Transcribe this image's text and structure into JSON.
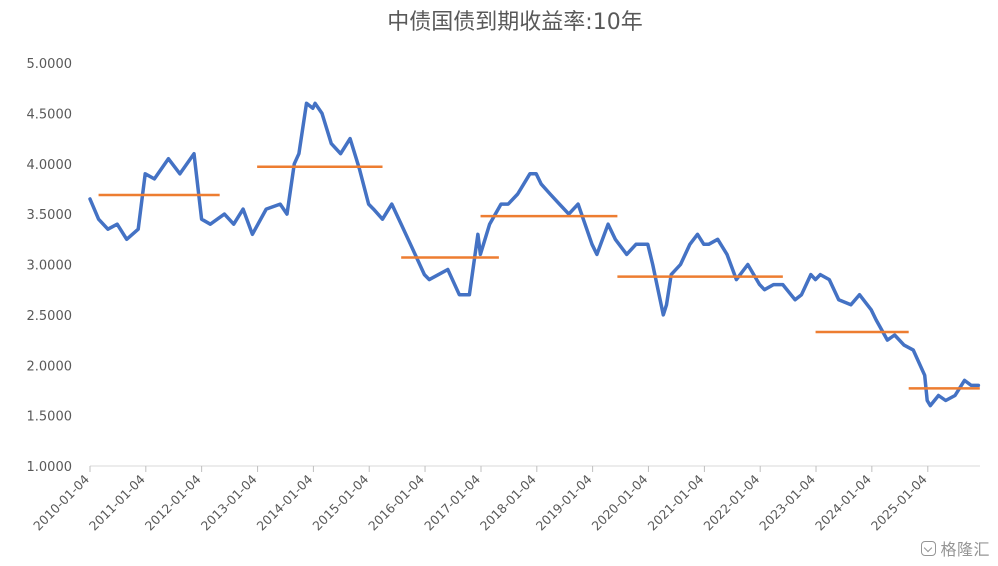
{
  "chart_data": {
    "type": "line",
    "title": "中债国债到期收益率:10年",
    "xlabel": "",
    "ylabel": "",
    "ylim": [
      1.0,
      5.0
    ],
    "y_ticks": [
      "5.0000",
      "4.5000",
      "4.0000",
      "3.5000",
      "3.0000",
      "2.5000",
      "2.0000",
      "1.5000",
      "1.0000"
    ],
    "x_ticks": [
      "2010-01-04",
      "2011-01-04",
      "2012-01-04",
      "2013-01-04",
      "2014-01-04",
      "2015-01-04",
      "2016-01-04",
      "2017-01-04",
      "2018-01-04",
      "2019-01-04",
      "2020-01-04",
      "2021-01-04",
      "2022-01-04",
      "2023-01-04",
      "2024-01-04",
      "2025-01-04"
    ],
    "grid": false,
    "legend": "none",
    "series": [
      {
        "color": "#4472C4",
        "x": [
          "2010-01-04",
          "2010-03-01",
          "2010-05-01",
          "2010-07-01",
          "2010-09-01",
          "2010-11-15",
          "2010-12-31",
          "2011-03-01",
          "2011-06-01",
          "2011-08-15",
          "2011-11-15",
          "2012-01-04",
          "2012-03-01",
          "2012-06-01",
          "2012-08-01",
          "2012-10-01",
          "2012-12-01",
          "2013-03-01",
          "2013-06-01",
          "2013-07-15",
          "2013-09-01",
          "2013-10-01",
          "2013-11-20",
          "2013-12-31",
          "2014-01-15",
          "2014-03-01",
          "2014-05-01",
          "2014-07-01",
          "2014-09-01",
          "2014-11-01",
          "2014-12-31",
          "2015-02-01",
          "2015-04-01",
          "2015-06-01",
          "2015-08-01",
          "2015-10-01",
          "2015-12-31",
          "2016-02-01",
          "2016-04-01",
          "2016-06-01",
          "2016-08-15",
          "2016-10-20",
          "2016-12-15",
          "2016-12-31",
          "2017-03-01",
          "2017-05-15",
          "2017-07-01",
          "2017-09-01",
          "2017-11-20",
          "2017-12-31",
          "2018-02-01",
          "2018-04-01",
          "2018-06-01",
          "2018-08-01",
          "2018-10-01",
          "2018-12-31",
          "2019-02-01",
          "2019-04-15",
          "2019-06-01",
          "2019-08-15",
          "2019-10-15",
          "2019-12-31",
          "2020-02-01",
          "2020-04-10",
          "2020-05-01",
          "2020-06-01",
          "2020-08-01",
          "2020-10-01",
          "2020-11-20",
          "2020-12-31",
          "2021-02-01",
          "2021-04-01",
          "2021-06-01",
          "2021-08-01",
          "2021-10-15",
          "2021-12-31",
          "2022-02-01",
          "2022-04-01",
          "2022-06-01",
          "2022-08-20",
          "2022-10-01",
          "2022-12-01",
          "2022-12-31",
          "2023-02-01",
          "2023-04-01",
          "2023-06-01",
          "2023-08-20",
          "2023-10-15",
          "2023-12-31",
          "2024-02-01",
          "2024-04-15",
          "2024-06-01",
          "2024-08-01",
          "2024-10-01",
          "2024-12-15",
          "2024-12-31",
          "2025-01-20",
          "2025-03-15",
          "2025-05-01",
          "2025-07-01",
          "2025-09-01",
          "2025-10-15",
          "2025-12-01"
        ],
        "values": [
          3.65,
          3.45,
          3.35,
          3.4,
          3.25,
          3.35,
          3.9,
          3.85,
          4.05,
          3.9,
          4.1,
          3.45,
          3.4,
          3.5,
          3.4,
          3.55,
          3.3,
          3.55,
          3.6,
          3.5,
          4.0,
          4.1,
          4.6,
          4.55,
          4.6,
          4.5,
          4.2,
          4.1,
          4.25,
          3.95,
          3.6,
          3.55,
          3.45,
          3.6,
          3.4,
          3.2,
          2.9,
          2.85,
          2.9,
          2.95,
          2.7,
          2.7,
          3.3,
          3.1,
          3.4,
          3.6,
          3.6,
          3.7,
          3.9,
          3.9,
          3.8,
          3.7,
          3.6,
          3.5,
          3.6,
          3.2,
          3.1,
          3.4,
          3.25,
          3.1,
          3.2,
          3.2,
          3.0,
          2.5,
          2.6,
          2.9,
          3.0,
          3.2,
          3.3,
          3.2,
          3.2,
          3.25,
          3.1,
          2.85,
          3.0,
          2.8,
          2.75,
          2.8,
          2.8,
          2.65,
          2.7,
          2.9,
          2.85,
          2.9,
          2.85,
          2.65,
          2.6,
          2.7,
          2.55,
          2.45,
          2.25,
          2.3,
          2.2,
          2.15,
          1.9,
          1.65,
          1.6,
          1.7,
          1.65,
          1.7,
          1.85,
          1.8,
          1.8
        ]
      },
      {
        "color": "#ED7D31",
        "segments": [
          {
            "x0": "2010-03-01",
            "x1": "2012-05-01",
            "value": 3.69
          },
          {
            "x0": "2013-01-01",
            "x1": "2015-04-01",
            "value": 3.97
          },
          {
            "x0": "2015-08-01",
            "x1": "2017-05-01",
            "value": 3.07
          },
          {
            "x0": "2017-01-01",
            "x1": "2019-06-15",
            "value": 3.48
          },
          {
            "x0": "2019-06-15",
            "x1": "2022-06-01",
            "value": 2.88
          },
          {
            "x0": "2023-01-01",
            "x1": "2024-09-01",
            "value": 2.33
          },
          {
            "x0": "2024-09-01",
            "x1": "2025-12-10",
            "value": 1.77
          }
        ]
      }
    ]
  },
  "watermark": "格隆汇"
}
